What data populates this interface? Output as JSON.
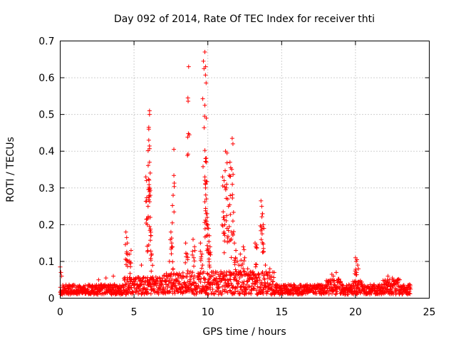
{
  "chart_data": {
    "type": "scatter",
    "title": "Day 092 of 2014, Rate Of TEC Index for receiver thti",
    "xlabel": "GPS time / hours",
    "ylabel": "ROTI / TECUs",
    "xlim": [
      0,
      25
    ],
    "ylim": [
      0,
      0.7
    ],
    "xticks": [
      0,
      5,
      10,
      15,
      20,
      25
    ],
    "yticks": [
      0,
      0.1,
      0.2,
      0.3,
      0.4,
      0.5,
      0.6,
      0.7
    ],
    "xtick_labels": [
      "0",
      "5",
      "10",
      "15",
      "20",
      "25"
    ],
    "ytick_labels": [
      "0",
      "0.1",
      "0.2",
      "0.3",
      "0.4",
      "0.5",
      "0.6",
      "0.7"
    ],
    "grid": true,
    "marker": "+",
    "color": "#ff0000",
    "series": [
      {
        "name": "ROTI",
        "baseline_range": [
          0,
          23.75
        ],
        "baseline_level": 0.025,
        "bursts": [
          {
            "x": 0.0,
            "y": 0.085
          },
          {
            "x": 0.05,
            "y": 0.07
          },
          {
            "x": 0.1,
            "y": 0.06
          },
          {
            "x": 2.6,
            "y": 0.05
          },
          {
            "x": 3.1,
            "y": 0.055
          },
          {
            "x": 3.6,
            "y": 0.06
          },
          {
            "x": 4.45,
            "y": 0.18
          },
          {
            "x": 4.5,
            "y": 0.165
          },
          {
            "x": 4.55,
            "y": 0.15
          },
          {
            "x": 4.6,
            "y": 0.1
          },
          {
            "x": 4.7,
            "y": 0.12
          },
          {
            "x": 4.8,
            "y": 0.13
          },
          {
            "x": 5.5,
            "y": 0.09
          },
          {
            "x": 5.8,
            "y": 0.33
          },
          {
            "x": 5.85,
            "y": 0.32
          },
          {
            "x": 5.9,
            "y": 0.2
          },
          {
            "x": 5.95,
            "y": 0.25
          },
          {
            "x": 6.0,
            "y": 0.46
          },
          {
            "x": 6.0,
            "y": 0.43
          },
          {
            "x": 6.05,
            "y": 0.5
          },
          {
            "x": 6.05,
            "y": 0.37
          },
          {
            "x": 6.1,
            "y": 0.28
          },
          {
            "x": 6.1,
            "y": 0.22
          },
          {
            "x": 6.15,
            "y": 0.17
          },
          {
            "x": 6.2,
            "y": 0.12
          },
          {
            "x": 6.05,
            "y": 0.51
          },
          {
            "x": 6.0,
            "y": 0.465
          },
          {
            "x": 7.5,
            "y": 0.18
          },
          {
            "x": 7.55,
            "y": 0.15
          },
          {
            "x": 7.6,
            "y": 0.14
          },
          {
            "x": 7.65,
            "y": 0.28
          },
          {
            "x": 7.7,
            "y": 0.405
          },
          {
            "x": 7.4,
            "y": 0.1
          },
          {
            "x": 8.5,
            "y": 0.15
          },
          {
            "x": 8.6,
            "y": 0.12
          },
          {
            "x": 8.65,
            "y": 0.545
          },
          {
            "x": 8.7,
            "y": 0.63
          },
          {
            "x": 9.0,
            "y": 0.16
          },
          {
            "x": 9.1,
            "y": 0.14
          },
          {
            "x": 9.5,
            "y": 0.15
          },
          {
            "x": 9.6,
            "y": 0.12
          },
          {
            "x": 9.7,
            "y": 0.645
          },
          {
            "x": 9.8,
            "y": 0.67
          },
          {
            "x": 9.85,
            "y": 0.63
          },
          {
            "x": 9.9,
            "y": 0.49
          },
          {
            "x": 9.85,
            "y": 0.38
          },
          {
            "x": 9.9,
            "y": 0.37
          },
          {
            "x": 9.8,
            "y": 0.33
          },
          {
            "x": 9.85,
            "y": 0.3
          },
          {
            "x": 9.9,
            "y": 0.27
          },
          {
            "x": 9.95,
            "y": 0.23
          },
          {
            "x": 10.0,
            "y": 0.2
          },
          {
            "x": 10.05,
            "y": 0.19
          },
          {
            "x": 10.1,
            "y": 0.17
          },
          {
            "x": 9.95,
            "y": 0.22
          },
          {
            "x": 10.1,
            "y": 0.09
          },
          {
            "x": 10.15,
            "y": 0.14
          },
          {
            "x": 11.0,
            "y": 0.33
          },
          {
            "x": 11.1,
            "y": 0.32
          },
          {
            "x": 11.2,
            "y": 0.4
          },
          {
            "x": 11.3,
            "y": 0.395
          },
          {
            "x": 11.25,
            "y": 0.3
          },
          {
            "x": 11.35,
            "y": 0.27
          },
          {
            "x": 11.4,
            "y": 0.25
          },
          {
            "x": 11.05,
            "y": 0.22
          },
          {
            "x": 11.15,
            "y": 0.2
          },
          {
            "x": 11.5,
            "y": 0.37
          },
          {
            "x": 11.55,
            "y": 0.355
          },
          {
            "x": 11.65,
            "y": 0.435
          },
          {
            "x": 11.7,
            "y": 0.42
          },
          {
            "x": 11.7,
            "y": 0.21
          },
          {
            "x": 11.6,
            "y": 0.18
          },
          {
            "x": 11.8,
            "y": 0.15
          },
          {
            "x": 11.9,
            "y": 0.13
          },
          {
            "x": 12.0,
            "y": 0.1
          },
          {
            "x": 12.1,
            "y": 0.09
          },
          {
            "x": 12.2,
            "y": 0.12
          },
          {
            "x": 12.4,
            "y": 0.14
          },
          {
            "x": 12.5,
            "y": 0.11
          },
          {
            "x": 12.7,
            "y": 0.08
          },
          {
            "x": 13.0,
            "y": 0.07
          },
          {
            "x": 13.2,
            "y": 0.15
          },
          {
            "x": 13.3,
            "y": 0.145
          },
          {
            "x": 13.6,
            "y": 0.265
          },
          {
            "x": 13.65,
            "y": 0.25
          },
          {
            "x": 13.7,
            "y": 0.23
          },
          {
            "x": 13.75,
            "y": 0.2
          },
          {
            "x": 13.8,
            "y": 0.19
          },
          {
            "x": 13.9,
            "y": 0.09
          },
          {
            "x": 14.2,
            "y": 0.08
          },
          {
            "x": 14.5,
            "y": 0.07
          },
          {
            "x": 18.4,
            "y": 0.065
          },
          {
            "x": 18.5,
            "y": 0.06
          },
          {
            "x": 18.7,
            "y": 0.07
          },
          {
            "x": 20.0,
            "y": 0.11
          },
          {
            "x": 20.05,
            "y": 0.1
          },
          {
            "x": 20.1,
            "y": 0.105
          },
          {
            "x": 20.15,
            "y": 0.09
          },
          {
            "x": 20.2,
            "y": 0.08
          },
          {
            "x": 22.2,
            "y": 0.06
          },
          {
            "x": 22.5,
            "y": 0.055
          },
          {
            "x": 23.0,
            "y": 0.05
          }
        ]
      }
    ]
  }
}
